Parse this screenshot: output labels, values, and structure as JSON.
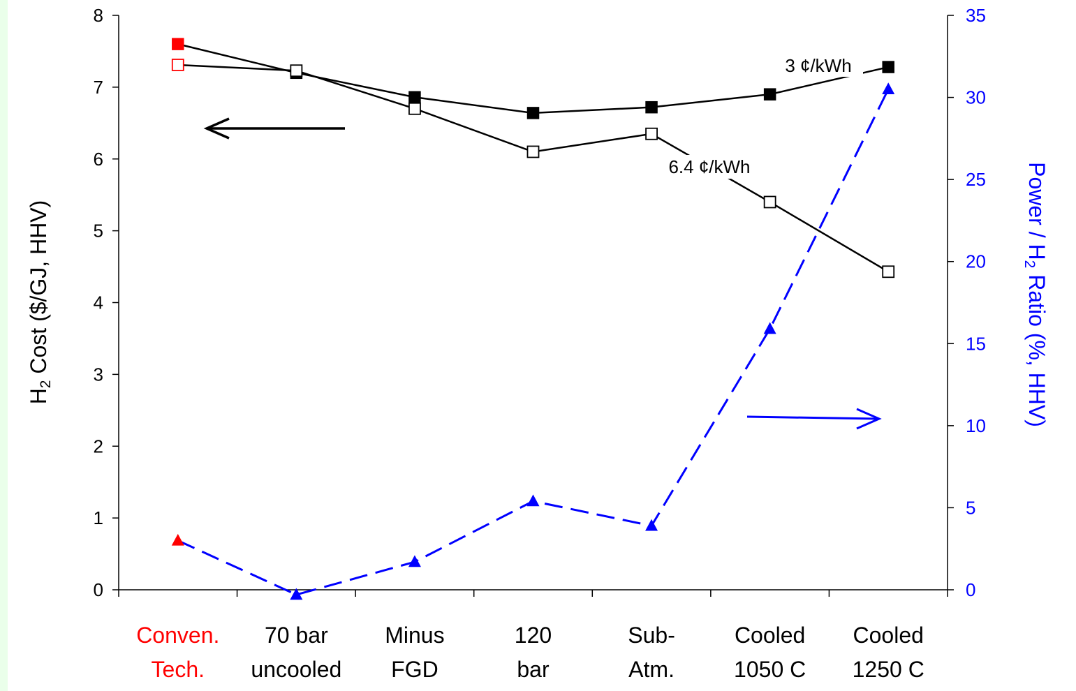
{
  "chart_data": {
    "type": "line",
    "categories": [
      [
        "Conven.",
        "Tech."
      ],
      [
        "70 bar",
        "uncooled"
      ],
      [
        "Minus",
        "FGD"
      ],
      [
        "120",
        "bar"
      ],
      [
        "Sub-",
        "Atm."
      ],
      [
        "Cooled",
        "1050 C"
      ],
      [
        "Cooled",
        "1250 C"
      ]
    ],
    "category_colors": [
      "#ff0000",
      "#000000",
      "#000000",
      "#000000",
      "#000000",
      "#000000",
      "#000000"
    ],
    "series": [
      {
        "name": "3 ¢/kWh",
        "axis": "left",
        "marker": "filled-square",
        "color": "#000000",
        "first_point_color": "#ff0000",
        "values": [
          7.6,
          7.2,
          6.86,
          6.64,
          6.72,
          6.9,
          7.28
        ]
      },
      {
        "name": "6.4 ¢/kWh",
        "axis": "left",
        "marker": "open-square",
        "color": "#000000",
        "first_point_color": "#ff0000",
        "values": [
          7.31,
          7.23,
          6.7,
          6.1,
          6.35,
          5.4,
          4.43
        ]
      },
      {
        "name": "",
        "axis": "right",
        "marker": "triangle",
        "line_style": "dashed",
        "color": "#0000ff",
        "first_point_color": "#ff0000",
        "values": [
          3.0,
          -0.3,
          1.7,
          5.4,
          3.9,
          15.9,
          30.5
        ]
      }
    ],
    "ylabel_left": {
      "main": "H",
      "sub": "2",
      "rest": " Cost ($/GJ, HHV)"
    },
    "ylabel_right": {
      "pre": "Power / H",
      "sub": "2",
      "post": " Ratio (%, HHV)"
    },
    "ylim_left": [
      0,
      8
    ],
    "yticks_left": [
      "0",
      "1",
      "2",
      "3",
      "4",
      "5",
      "6",
      "7",
      "8"
    ],
    "ylim_right": [
      0,
      35
    ],
    "yticks_right": [
      "0",
      "5",
      "10",
      "15",
      "20",
      "25",
      "30",
      "35"
    ],
    "annotations": [
      "3 ¢/kWh",
      "6.4 ¢/kWh"
    ],
    "grid": false,
    "colors": {
      "left_axis": "#000000",
      "right_axis": "#0000ff",
      "highlight": "#ff0000"
    }
  }
}
